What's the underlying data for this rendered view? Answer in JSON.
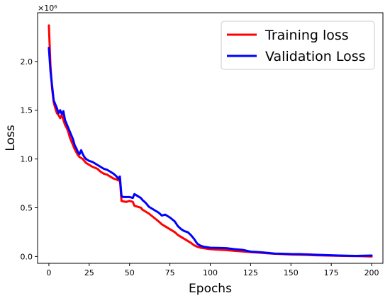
{
  "chart_data": {
    "type": "line",
    "title": "",
    "xlabel": "Epochs",
    "ylabel": "Loss",
    "y_offset_text": "×10⁶",
    "xlim": [
      -7,
      207
    ],
    "ylim": [
      -0.07,
      2.5
    ],
    "x_ticks": [
      0,
      25,
      50,
      75,
      100,
      125,
      150,
      175,
      200
    ],
    "x_tick_labels": [
      "0",
      "25",
      "50",
      "75",
      "100",
      "125",
      "150",
      "175",
      "200"
    ],
    "y_ticks": [
      0.0,
      0.5,
      1.0,
      1.5,
      2.0
    ],
    "y_tick_labels": [
      "0.0",
      "0.5",
      "1.0",
      "1.5",
      "2.0"
    ],
    "grid": false,
    "legend_position": "top-right",
    "series": [
      {
        "name": "Training loss",
        "color": "#ff0000",
        "x": [
          0,
          1,
          2,
          3,
          4,
          5,
          6,
          7,
          8,
          9,
          10,
          11,
          12,
          13,
          14,
          15,
          16,
          17,
          18,
          19,
          20,
          21,
          22,
          23,
          24,
          25,
          27,
          30,
          32,
          34,
          36,
          38,
          40,
          42,
          43,
          44,
          45,
          46,
          48,
          50,
          52,
          53,
          55,
          57,
          58,
          60,
          62,
          65,
          68,
          70,
          72,
          75,
          78,
          80,
          82,
          84,
          86,
          88,
          90,
          92,
          94,
          96,
          98,
          100,
          105,
          110,
          115,
          120,
          125,
          130,
          135,
          140,
          145,
          150,
          155,
          160,
          165,
          170,
          175,
          180,
          185,
          190,
          195,
          200
        ],
        "values": [
          2.37,
          1.95,
          1.72,
          1.58,
          1.52,
          1.47,
          1.45,
          1.42,
          1.45,
          1.4,
          1.35,
          1.32,
          1.28,
          1.22,
          1.18,
          1.14,
          1.1,
          1.07,
          1.04,
          1.02,
          1.01,
          1.0,
          0.98,
          0.96,
          0.95,
          0.94,
          0.92,
          0.9,
          0.87,
          0.85,
          0.84,
          0.82,
          0.8,
          0.79,
          0.78,
          0.8,
          0.57,
          0.565,
          0.56,
          0.57,
          0.56,
          0.52,
          0.51,
          0.5,
          0.48,
          0.46,
          0.44,
          0.4,
          0.36,
          0.33,
          0.31,
          0.28,
          0.25,
          0.22,
          0.2,
          0.18,
          0.16,
          0.14,
          0.115,
          0.1,
          0.09,
          0.085,
          0.08,
          0.075,
          0.07,
          0.065,
          0.058,
          0.052,
          0.045,
          0.04,
          0.033,
          0.028,
          0.024,
          0.02,
          0.018,
          0.016,
          0.013,
          0.011,
          0.009,
          0.007,
          0.005,
          0.004,
          0.003,
          0.0
        ]
      },
      {
        "name": "Validation Loss",
        "color": "#0000ff",
        "x": [
          0,
          1,
          2,
          3,
          4,
          5,
          6,
          7,
          8,
          9,
          10,
          11,
          12,
          13,
          14,
          15,
          16,
          17,
          18,
          19,
          20,
          21,
          22,
          23,
          24,
          25,
          27,
          30,
          32,
          34,
          36,
          38,
          40,
          42,
          43,
          44,
          45,
          46,
          48,
          50,
          52,
          53,
          55,
          57,
          58,
          60,
          62,
          65,
          68,
          70,
          72,
          75,
          78,
          80,
          82,
          84,
          86,
          88,
          90,
          92,
          94,
          96,
          98,
          100,
          105,
          110,
          115,
          120,
          125,
          130,
          135,
          140,
          145,
          150,
          155,
          160,
          165,
          170,
          175,
          180,
          185,
          190,
          195,
          200
        ],
        "values": [
          2.14,
          1.9,
          1.75,
          1.6,
          1.56,
          1.52,
          1.47,
          1.5,
          1.46,
          1.49,
          1.4,
          1.36,
          1.32,
          1.28,
          1.24,
          1.2,
          1.14,
          1.11,
          1.07,
          1.05,
          1.09,
          1.05,
          1.02,
          1.0,
          0.99,
          0.98,
          0.97,
          0.94,
          0.92,
          0.9,
          0.89,
          0.87,
          0.85,
          0.82,
          0.8,
          0.82,
          0.62,
          0.61,
          0.61,
          0.61,
          0.6,
          0.64,
          0.62,
          0.6,
          0.58,
          0.55,
          0.51,
          0.48,
          0.45,
          0.42,
          0.43,
          0.4,
          0.36,
          0.31,
          0.28,
          0.26,
          0.25,
          0.22,
          0.18,
          0.13,
          0.11,
          0.1,
          0.095,
          0.09,
          0.088,
          0.085,
          0.075,
          0.068,
          0.05,
          0.045,
          0.038,
          0.03,
          0.028,
          0.025,
          0.024,
          0.022,
          0.018,
          0.015,
          0.013,
          0.01,
          0.008,
          0.006,
          0.008,
          0.01
        ]
      }
    ]
  }
}
